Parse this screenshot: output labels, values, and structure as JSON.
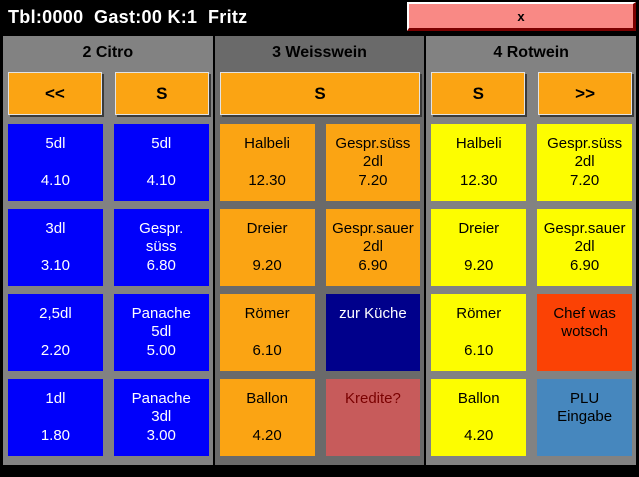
{
  "titlebar": {
    "title": "Tbl:0000  Gast:00 K:1  Fritz",
    "close_label": "x"
  },
  "colors": {
    "titlebar_bg": "#000000",
    "close_button_bg": "#F98985",
    "close_button_border": "#7B0000",
    "panel_gray": "#828282",
    "panel_gray_active": "#6A6A6A",
    "toolbar_orange": "#FBA413",
    "plu_blue": "#0000FB",
    "plu_orange": "#FBA413",
    "plu_yellow": "#FDFD00",
    "kitchen_navy": "#00008B",
    "kredite_rose": "#C75B5B",
    "chef_orangered": "#FB4205",
    "plu_entry_steelblue": "#4687BE"
  },
  "columns": [
    {
      "header": "2 Citro",
      "toolbar": [
        {
          "label": "<<"
        },
        {
          "label": "S"
        }
      ],
      "cells": [
        {
          "name": "5dl",
          "price": "4.10"
        },
        {
          "name": "5dl",
          "price": "4.10"
        },
        {
          "name": "3dl",
          "price": "3.10"
        },
        {
          "name": "Gespr.\nsüss",
          "price": "6.80"
        },
        {
          "name": "2,5dl",
          "price": "2.20"
        },
        {
          "name": "Panache\n5dl",
          "price": "5.00"
        },
        {
          "name": "1dl",
          "price": "1.80"
        },
        {
          "name": "Panache\n3dl",
          "price": "3.00"
        }
      ]
    },
    {
      "header": "3 Weisswein",
      "toolbar": [
        {
          "label": "S"
        }
      ],
      "cells": [
        {
          "name": "Halbeli",
          "price": "12.30"
        },
        {
          "name": "Gespr.süss\n2dl",
          "price": "7.20"
        },
        {
          "name": "Dreier",
          "price": "9.20"
        },
        {
          "name": "Gespr.sauer\n2dl",
          "price": "6.90"
        },
        {
          "name": "Römer",
          "price": "6.10"
        },
        {
          "name": "zur Küche",
          "price": ""
        },
        {
          "name": "Ballon",
          "price": "4.20"
        },
        {
          "name": "Kredite?",
          "price": ""
        }
      ]
    },
    {
      "header": "4 Rotwein",
      "toolbar": [
        {
          "label": "S"
        },
        {
          "label": ">>"
        }
      ],
      "cells": [
        {
          "name": "Halbeli",
          "price": "12.30"
        },
        {
          "name": "Gespr.süss\n2dl",
          "price": "7.20"
        },
        {
          "name": "Dreier",
          "price": "9.20"
        },
        {
          "name": "Gespr.sauer\n2dl",
          "price": "6.90"
        },
        {
          "name": "Römer",
          "price": "6.10"
        },
        {
          "name": "Chef was\nwotsch",
          "price": ""
        },
        {
          "name": "Ballon",
          "price": "4.20"
        },
        {
          "name": "PLU\nEingabe",
          "price": ""
        }
      ]
    }
  ]
}
